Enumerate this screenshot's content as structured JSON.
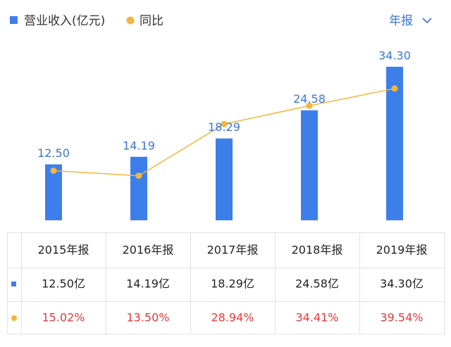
{
  "chart_data": {
    "type": "bar",
    "categories": [
      "2015年报",
      "2016年报",
      "2017年报",
      "2018年报",
      "2019年报"
    ],
    "series": [
      {
        "name": "营业收入(亿元)",
        "type": "bar",
        "color": "#3d7fea",
        "values": [
          12.5,
          14.19,
          18.29,
          24.58,
          34.3
        ],
        "value_labels": [
          "12.50",
          "14.19",
          "18.29",
          "24.58",
          "34.30"
        ]
      },
      {
        "name": "同比",
        "type": "line",
        "axis": "y2",
        "color": "#f3b53c",
        "values": [
          15.02,
          13.5,
          28.94,
          34.41,
          39.54
        ]
      }
    ],
    "period_selector": "年报"
  },
  "table": {
    "rows": [
      [
        "12.50亿",
        "14.19亿",
        "18.29亿",
        "24.58亿",
        "34.30亿"
      ],
      [
        "15.02%",
        "13.50%",
        "28.94%",
        "34.41%",
        "39.54%"
      ]
    ]
  }
}
